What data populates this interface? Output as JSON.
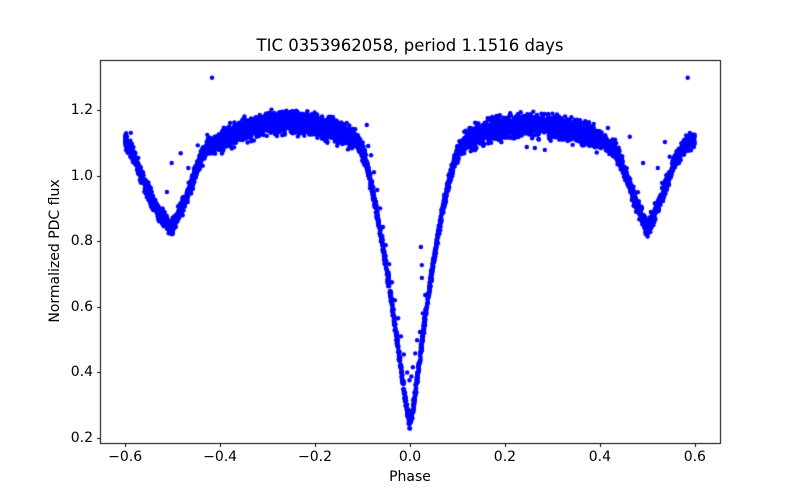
{
  "figure": {
    "title": "TIC 0353962058, period 1.1516 days",
    "xlabel": "Phase",
    "ylabel": "Normalized PDC flux",
    "background_color": "#ffffff",
    "marker_color": "#0000ff"
  },
  "chart_data": {
    "type": "scatter",
    "title": "TIC 0353962058, period 1.1516 days",
    "xlabel": "Phase",
    "ylabel": "Normalized PDC flux",
    "grid": false,
    "legend": null,
    "marker": {
      "style": "point",
      "color": "#0000ff",
      "radius_px": 2.2
    },
    "xlim": [
      -0.653,
      0.653
    ],
    "ylim": [
      0.185,
      1.352
    ],
    "xticks": [
      -0.6,
      -0.4,
      -0.2,
      0.0,
      0.2,
      0.4,
      0.6
    ],
    "xtick_labels": [
      "−0.6",
      "−0.4",
      "−0.2",
      "0.0",
      "0.2",
      "0.4",
      "0.6"
    ],
    "yticks": [
      0.2,
      0.4,
      0.6,
      0.8,
      1.0,
      1.2
    ],
    "ytick_labels": [
      "0.2",
      "0.4",
      "0.6",
      "0.8",
      "1.0",
      "1.2"
    ],
    "description": "Phase-folded TESS light curve of eclipsing binary TIC 0353962058. Dense blue point cloud follows mean_curve with photometric scatter; sparse secondary eclipse track and outliers overplotted.",
    "features": {
      "primary_eclipse": {
        "phase": 0.0,
        "min_flux": 0.25,
        "ingress_start_phase": -0.1,
        "egress_end_phase": 0.1
      },
      "secondary_eclipse": {
        "phases": [
          -0.5,
          0.5
        ],
        "min_flux": 0.84
      },
      "out_of_eclipse_peaks": {
        "phases": [
          -0.265,
          0.25
        ],
        "flux": [
          1.17,
          1.16
        ]
      },
      "band_top_flux": 1.19
    },
    "mean_curve": [
      [
        -0.6,
        1.112
      ],
      [
        -0.578,
        1.048
      ],
      [
        -0.556,
        0.966
      ],
      [
        -0.532,
        0.89
      ],
      [
        -0.502,
        0.836
      ],
      [
        -0.478,
        0.91
      ],
      [
        -0.458,
        0.985
      ],
      [
        -0.442,
        1.048
      ],
      [
        -0.428,
        1.082
      ],
      [
        -0.408,
        1.1
      ],
      [
        -0.37,
        1.128
      ],
      [
        -0.335,
        1.146
      ],
      [
        -0.3,
        1.158
      ],
      [
        -0.265,
        1.165
      ],
      [
        -0.23,
        1.16
      ],
      [
        -0.195,
        1.15
      ],
      [
        -0.16,
        1.136
      ],
      [
        -0.13,
        1.12
      ],
      [
        -0.112,
        1.105
      ],
      [
        -0.1,
        1.078
      ],
      [
        -0.09,
        1.028
      ],
      [
        -0.08,
        0.958
      ],
      [
        -0.07,
        0.888
      ],
      [
        -0.06,
        0.808
      ],
      [
        -0.05,
        0.722
      ],
      [
        -0.04,
        0.628
      ],
      [
        -0.03,
        0.528
      ],
      [
        -0.02,
        0.424
      ],
      [
        -0.012,
        0.34
      ],
      [
        -0.006,
        0.282
      ],
      [
        0.0,
        0.248
      ],
      [
        0.006,
        0.282
      ],
      [
        0.012,
        0.345
      ],
      [
        0.02,
        0.438
      ],
      [
        0.03,
        0.545
      ],
      [
        0.04,
        0.648
      ],
      [
        0.05,
        0.742
      ],
      [
        0.06,
        0.828
      ],
      [
        0.07,
        0.902
      ],
      [
        0.08,
        0.968
      ],
      [
        0.09,
        1.026
      ],
      [
        0.1,
        1.072
      ],
      [
        0.113,
        1.098
      ],
      [
        0.13,
        1.115
      ],
      [
        0.16,
        1.132
      ],
      [
        0.2,
        1.146
      ],
      [
        0.25,
        1.155
      ],
      [
        0.3,
        1.147
      ],
      [
        0.35,
        1.133
      ],
      [
        0.392,
        1.113
      ],
      [
        0.412,
        1.098
      ],
      [
        0.43,
        1.078
      ],
      [
        0.444,
        1.042
      ],
      [
        0.46,
        0.98
      ],
      [
        0.478,
        0.908
      ],
      [
        0.5,
        0.836
      ],
      [
        0.524,
        0.914
      ],
      [
        0.544,
        0.988
      ],
      [
        0.56,
        1.05
      ],
      [
        0.58,
        1.092
      ],
      [
        0.6,
        1.112
      ]
    ],
    "scatter": {
      "n_points": 6200,
      "seed": 7,
      "phase_range": [
        -0.6,
        0.6
      ],
      "sigma_regions": [
        {
          "abs_phase_max": 0.095,
          "sigma": 0.01
        },
        {
          "abs_phase_max": 0.125,
          "sigma": 0.013
        },
        {
          "abs_phase_max": 0.4,
          "sigma": 0.016
        },
        {
          "abs_phase_max": 0.44,
          "sigma": 0.012
        },
        {
          "abs_phase_max": 0.62,
          "sigma": 0.011
        }
      ],
      "clamp_sigma": 2.6
    },
    "braid_track": {
      "phase_min": -0.355,
      "phase_max": -0.135,
      "n_points": 240,
      "offset": 0.018,
      "wave_amplitude": 0.007,
      "wave_period": 0.048,
      "sigma": 0.005
    },
    "eclipse_track_points": [
      [
        -0.088,
        1.09
      ],
      [
        -0.082,
        1.062
      ],
      [
        -0.076,
        1.01
      ],
      [
        -0.069,
        0.956
      ],
      [
        -0.063,
        0.9
      ],
      [
        -0.057,
        0.843
      ],
      [
        -0.051,
        0.788
      ],
      [
        -0.044,
        0.73
      ],
      [
        -0.038,
        0.675
      ],
      [
        -0.032,
        0.62
      ],
      [
        -0.025,
        0.565
      ],
      [
        -0.019,
        0.51
      ],
      [
        -0.013,
        0.455
      ],
      [
        -0.006,
        0.4
      ],
      [
        -0.001,
        0.376
      ],
      [
        0.003,
        0.388
      ],
      [
        0.006,
        0.416
      ],
      [
        0.011,
        0.458
      ],
      [
        0.015,
        0.498
      ],
      [
        0.021,
        0.523
      ],
      [
        0.027,
        0.58
      ],
      [
        0.032,
        0.636
      ],
      [
        0.025,
        0.688
      ],
      [
        0.025,
        0.727
      ],
      [
        0.023,
        0.782
      ]
    ],
    "extra_points": [
      [
        -0.594,
        1.102
      ],
      [
        -0.588,
        1.13
      ],
      [
        -0.512,
        0.95
      ],
      [
        -0.502,
        1.038
      ],
      [
        -0.483,
        1.068
      ],
      [
        -0.467,
        1.023
      ],
      [
        -0.463,
        0.965
      ],
      [
        -0.447,
        1.092
      ],
      [
        -0.427,
        1.124
      ],
      [
        -0.091,
        1.154
      ],
      [
        0.246,
        1.087
      ],
      [
        0.263,
        1.084
      ],
      [
        0.284,
        1.078
      ],
      [
        0.316,
        1.172
      ],
      [
        0.417,
        1.145
      ],
      [
        0.432,
        1.109
      ],
      [
        0.463,
        1.118
      ],
      [
        0.48,
        0.949
      ],
      [
        0.491,
        1.038
      ],
      [
        0.522,
        1.023
      ],
      [
        0.531,
        0.977
      ],
      [
        0.537,
        1.102
      ],
      [
        0.547,
        1.057
      ]
    ],
    "outlier_points": [
      [
        -0.417,
        1.298
      ],
      [
        0.585,
        1.298
      ]
    ]
  }
}
